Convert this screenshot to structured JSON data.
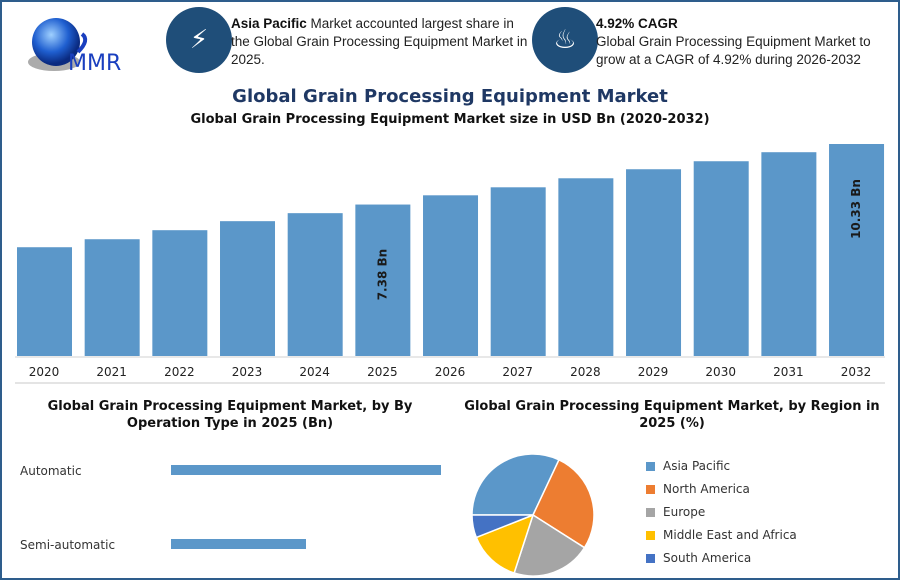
{
  "header": {
    "logo_text": "MMR",
    "info1": {
      "icon": "lightning-icon",
      "bold": "Asia Pacific",
      "text": " Market accounted largest share in the Global Grain Processing Equipment Market in 2025."
    },
    "info2": {
      "icon": "flame-drop-icon",
      "bold": "4.92% CAGR",
      "text": "Global Grain Processing Equipment Market to grow at a CAGR of 4.92% during 2026-2032"
    }
  },
  "colors": {
    "bar": "#5b97c9",
    "title": "#1f3864",
    "circle": "#1f4e79",
    "border": "#2e5d8c"
  },
  "chart_data": [
    {
      "type": "bar",
      "title": "Global Grain Processing Equipment Market",
      "subtitle": "Global Grain Processing Equipment Market size in USD Bn (2020-2032)",
      "categories": [
        "2020",
        "2021",
        "2022",
        "2023",
        "2024",
        "2025",
        "2026",
        "2027",
        "2028",
        "2029",
        "2030",
        "2031",
        "2032"
      ],
      "values": [
        5.3,
        5.69,
        6.13,
        6.57,
        6.96,
        7.38,
        7.83,
        8.22,
        8.66,
        9.1,
        9.49,
        9.93,
        10.33
      ],
      "data_labels": {
        "2025": "7.38 Bn",
        "2032": "10.33 Bn"
      },
      "ylim": [
        0,
        10.33
      ],
      "grid": false
    },
    {
      "type": "bar",
      "orientation": "horizontal",
      "title": "Global Grain Processing Equipment Market, by By Operation Type in 2025 (Bn)",
      "categories": [
        "Automatic",
        "Semi-automatic"
      ],
      "values": [
        1.0,
        0.5
      ],
      "grid": false
    },
    {
      "type": "pie",
      "title": "Global Grain Processing Equipment Market, by Region in 2025 (%)",
      "categories": [
        "Asia Pacific",
        "North America",
        "Europe",
        "Middle East and Africa",
        "South America"
      ],
      "values": [
        32,
        27,
        21,
        14,
        6
      ],
      "colors": [
        "#5b97c9",
        "#ed7d31",
        "#a5a5a5",
        "#ffc000",
        "#4472c4"
      ],
      "legend": "right"
    }
  ]
}
